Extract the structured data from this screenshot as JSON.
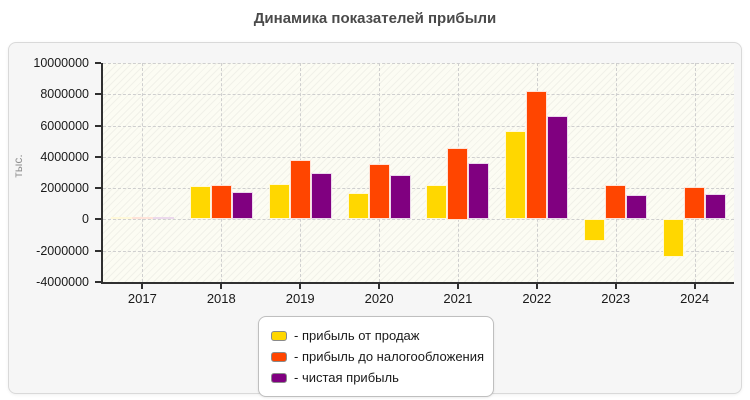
{
  "chart_data": {
    "type": "bar",
    "title": "Динамика показателей прибыли",
    "xlabel": "",
    "ylabel": "тыс.",
    "categories": [
      "2017",
      "2018",
      "2019",
      "2020",
      "2021",
      "2022",
      "2023",
      "2024"
    ],
    "series": [
      {
        "name": "прибыль от продаж",
        "color": "#FFD700",
        "values": [
          150000,
          2150000,
          2250000,
          1700000,
          2200000,
          5650000,
          -1400000,
          -2400000
        ]
      },
      {
        "name": "прибыль до налогообложения",
        "color": "#FF4500",
        "values": [
          160000,
          2200000,
          3800000,
          3550000,
          4600000,
          8200000,
          2200000,
          2100000
        ]
      },
      {
        "name": "чистая прибыль",
        "color": "#800080",
        "values": [
          130000,
          1750000,
          3000000,
          2850000,
          3600000,
          6600000,
          1550000,
          1650000
        ]
      }
    ],
    "ylim": [
      -4000000,
      10000000
    ],
    "yticks": [
      10000000,
      8000000,
      6000000,
      4000000,
      2000000,
      0,
      -2000000,
      -4000000
    ],
    "grid": true,
    "plot_background": "#fcfcf3",
    "legend_position": "bottom-center",
    "legend_prefix": "- "
  }
}
